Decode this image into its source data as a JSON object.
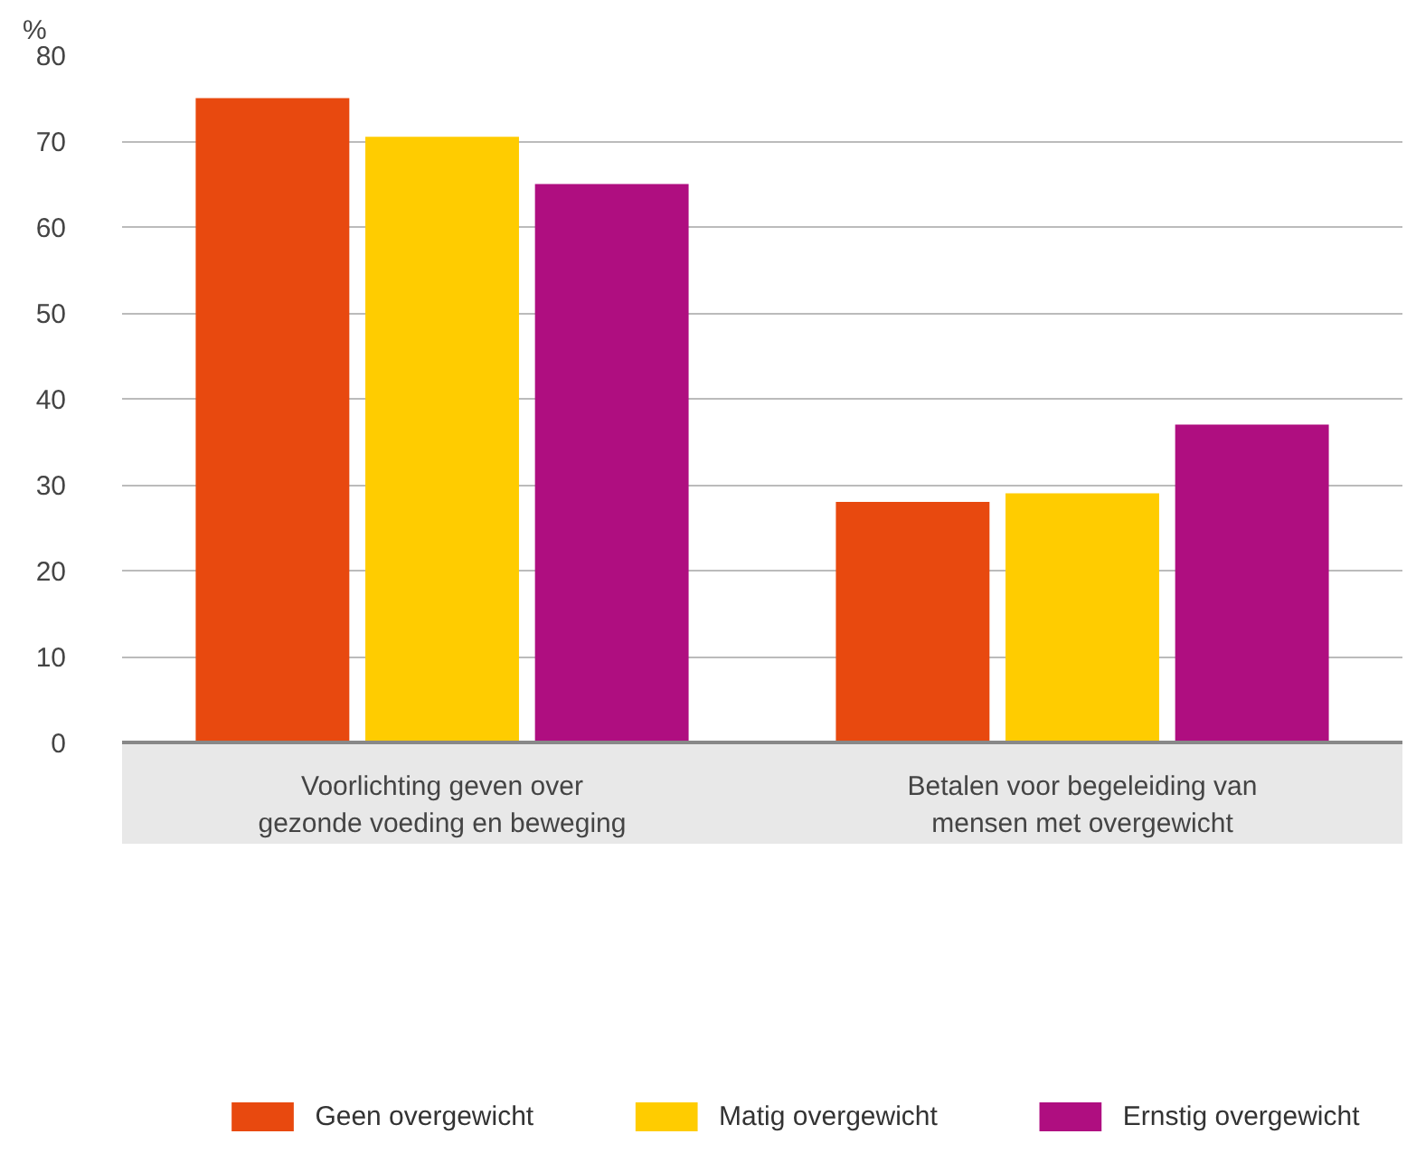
{
  "chart_data": {
    "type": "bar",
    "ylabel": "%",
    "categories": [
      "Voorlichting geven over\ngezonde voeding en beweging",
      "Betalen voor begeleiding van\nmensen met overgewicht"
    ],
    "series": [
      {
        "name": "Geen overgewicht",
        "color": "#e8490f",
        "values": [
          75,
          28
        ]
      },
      {
        "name": "Matig overgewicht",
        "color": "#ffcc00",
        "values": [
          70.5,
          29
        ]
      },
      {
        "name": "Ernstig overgewicht",
        "color": "#af0e80",
        "values": [
          65,
          37
        ]
      }
    ],
    "ylim": [
      0,
      80
    ],
    "yticks": [
      0,
      10,
      20,
      30,
      40,
      50,
      60,
      70,
      80
    ],
    "grid": "y",
    "legend": "bottom"
  }
}
